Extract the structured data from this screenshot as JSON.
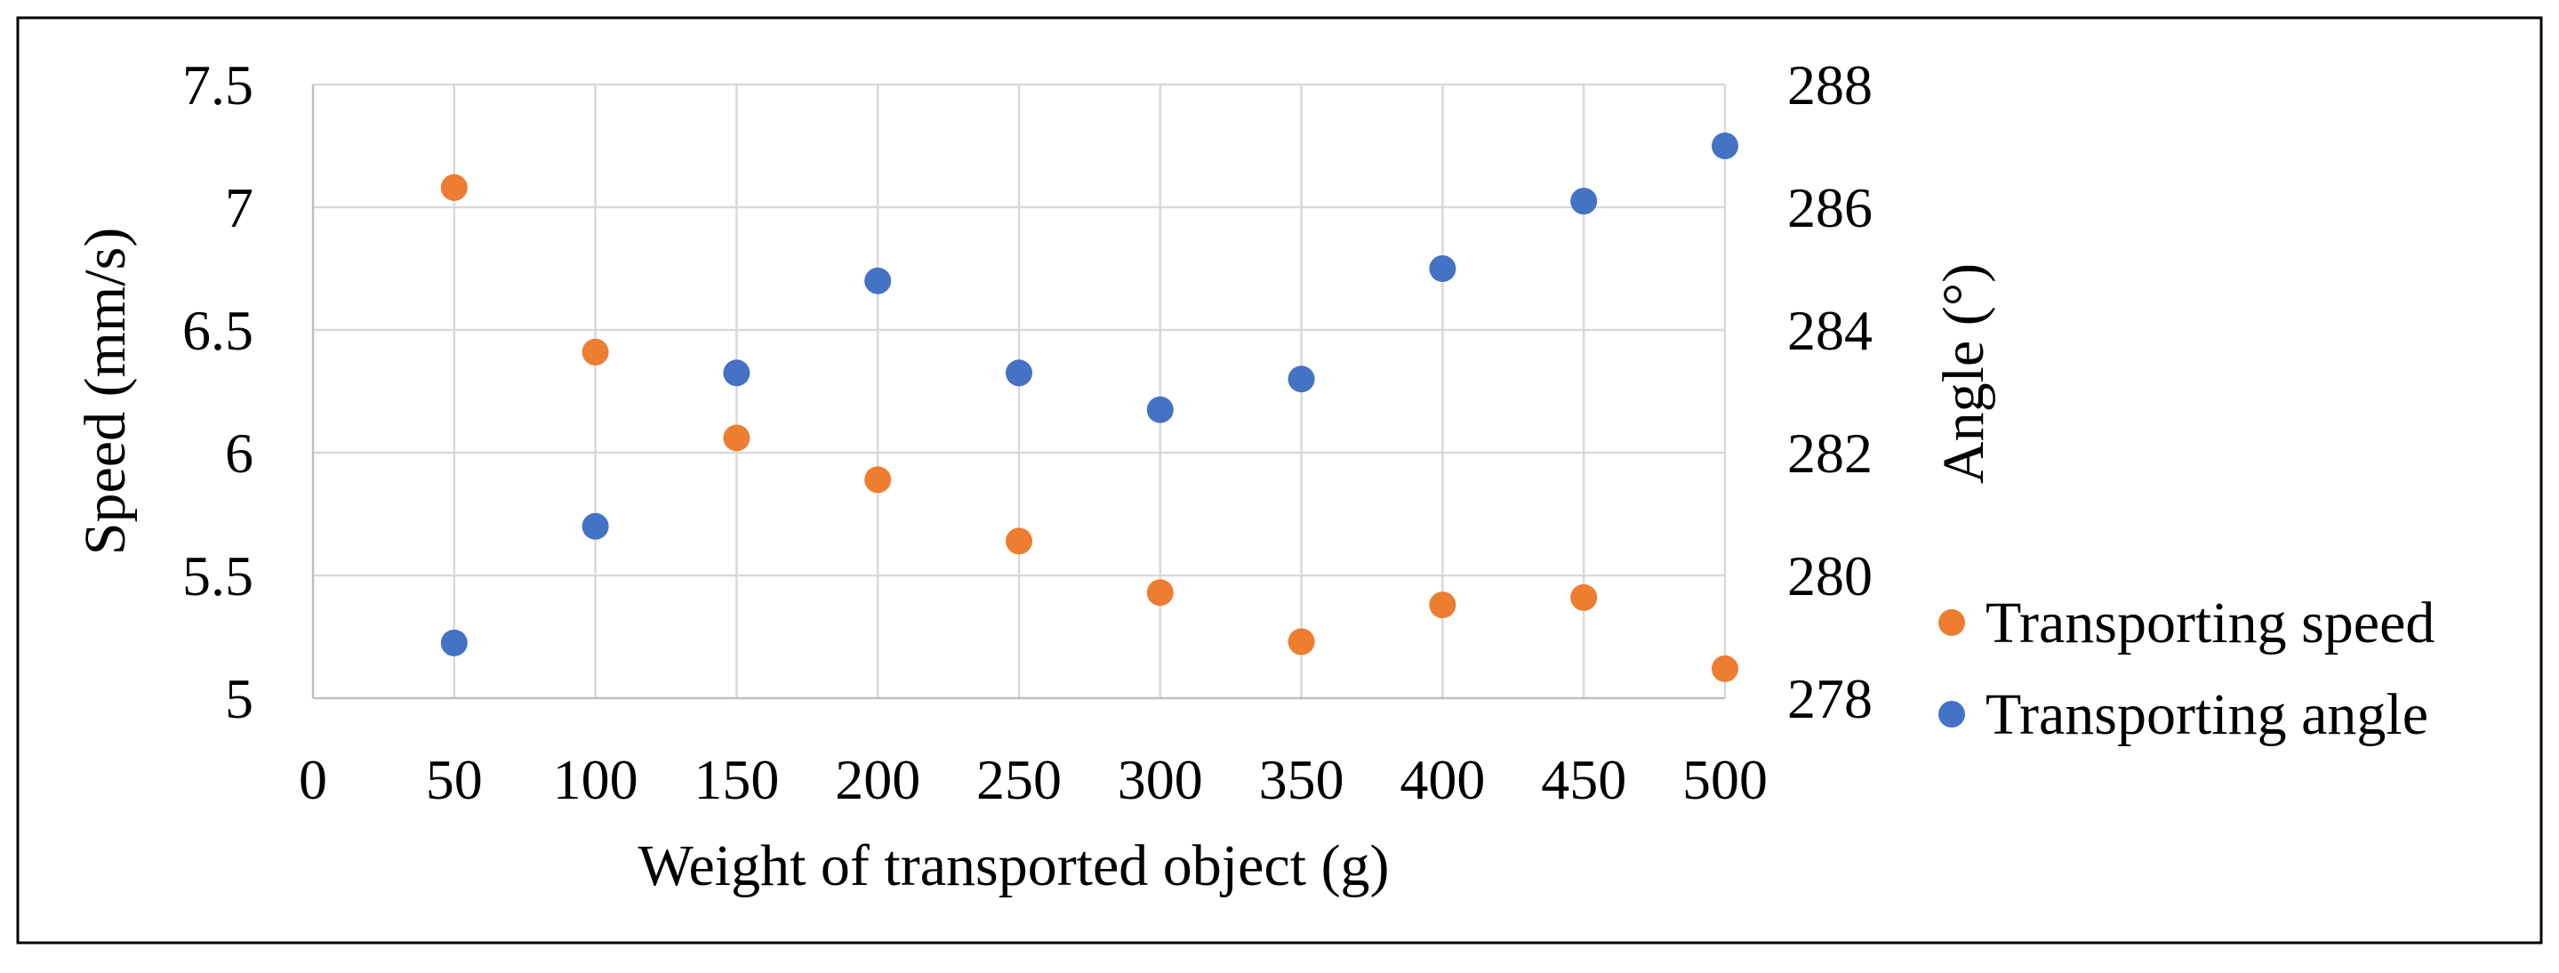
{
  "chart_data": {
    "type": "scatter",
    "title": "",
    "xlabel": "Weight of transported object (g)",
    "ylabel": "Speed (mm/s)",
    "y2label": "Angle (°)",
    "xlim": [
      0,
      500
    ],
    "ylim": [
      5,
      7.5
    ],
    "y2lim": [
      278,
      288
    ],
    "x_ticks": [
      "0",
      "50",
      "100",
      "150",
      "200",
      "250",
      "300",
      "350",
      "400",
      "450",
      "500"
    ],
    "y_ticks": [
      "5",
      "5.5",
      "6",
      "6.5",
      "7",
      "7.5"
    ],
    "y2_ticks": [
      "278",
      "280",
      "282",
      "284",
      "286",
      "288"
    ],
    "grid": true,
    "legend_position": "right",
    "series": [
      {
        "name": "Transporting speed",
        "axis": "left",
        "color": "#ED7D31",
        "x": [
          50,
          100,
          150,
          200,
          250,
          300,
          350,
          400,
          450,
          500
        ],
        "y": [
          7.08,
          6.41,
          6.06,
          5.89,
          5.64,
          5.43,
          5.23,
          5.38,
          5.41,
          5.12
        ]
      },
      {
        "name": "Transporting angle",
        "axis": "right",
        "color": "#4472C4",
        "x": [
          50,
          100,
          150,
          200,
          250,
          300,
          350,
          400,
          450,
          500
        ],
        "y": [
          278.9,
          280.8,
          283.3,
          284.8,
          283.3,
          282.7,
          283.2,
          285.0,
          286.1,
          287.0
        ]
      }
    ]
  }
}
